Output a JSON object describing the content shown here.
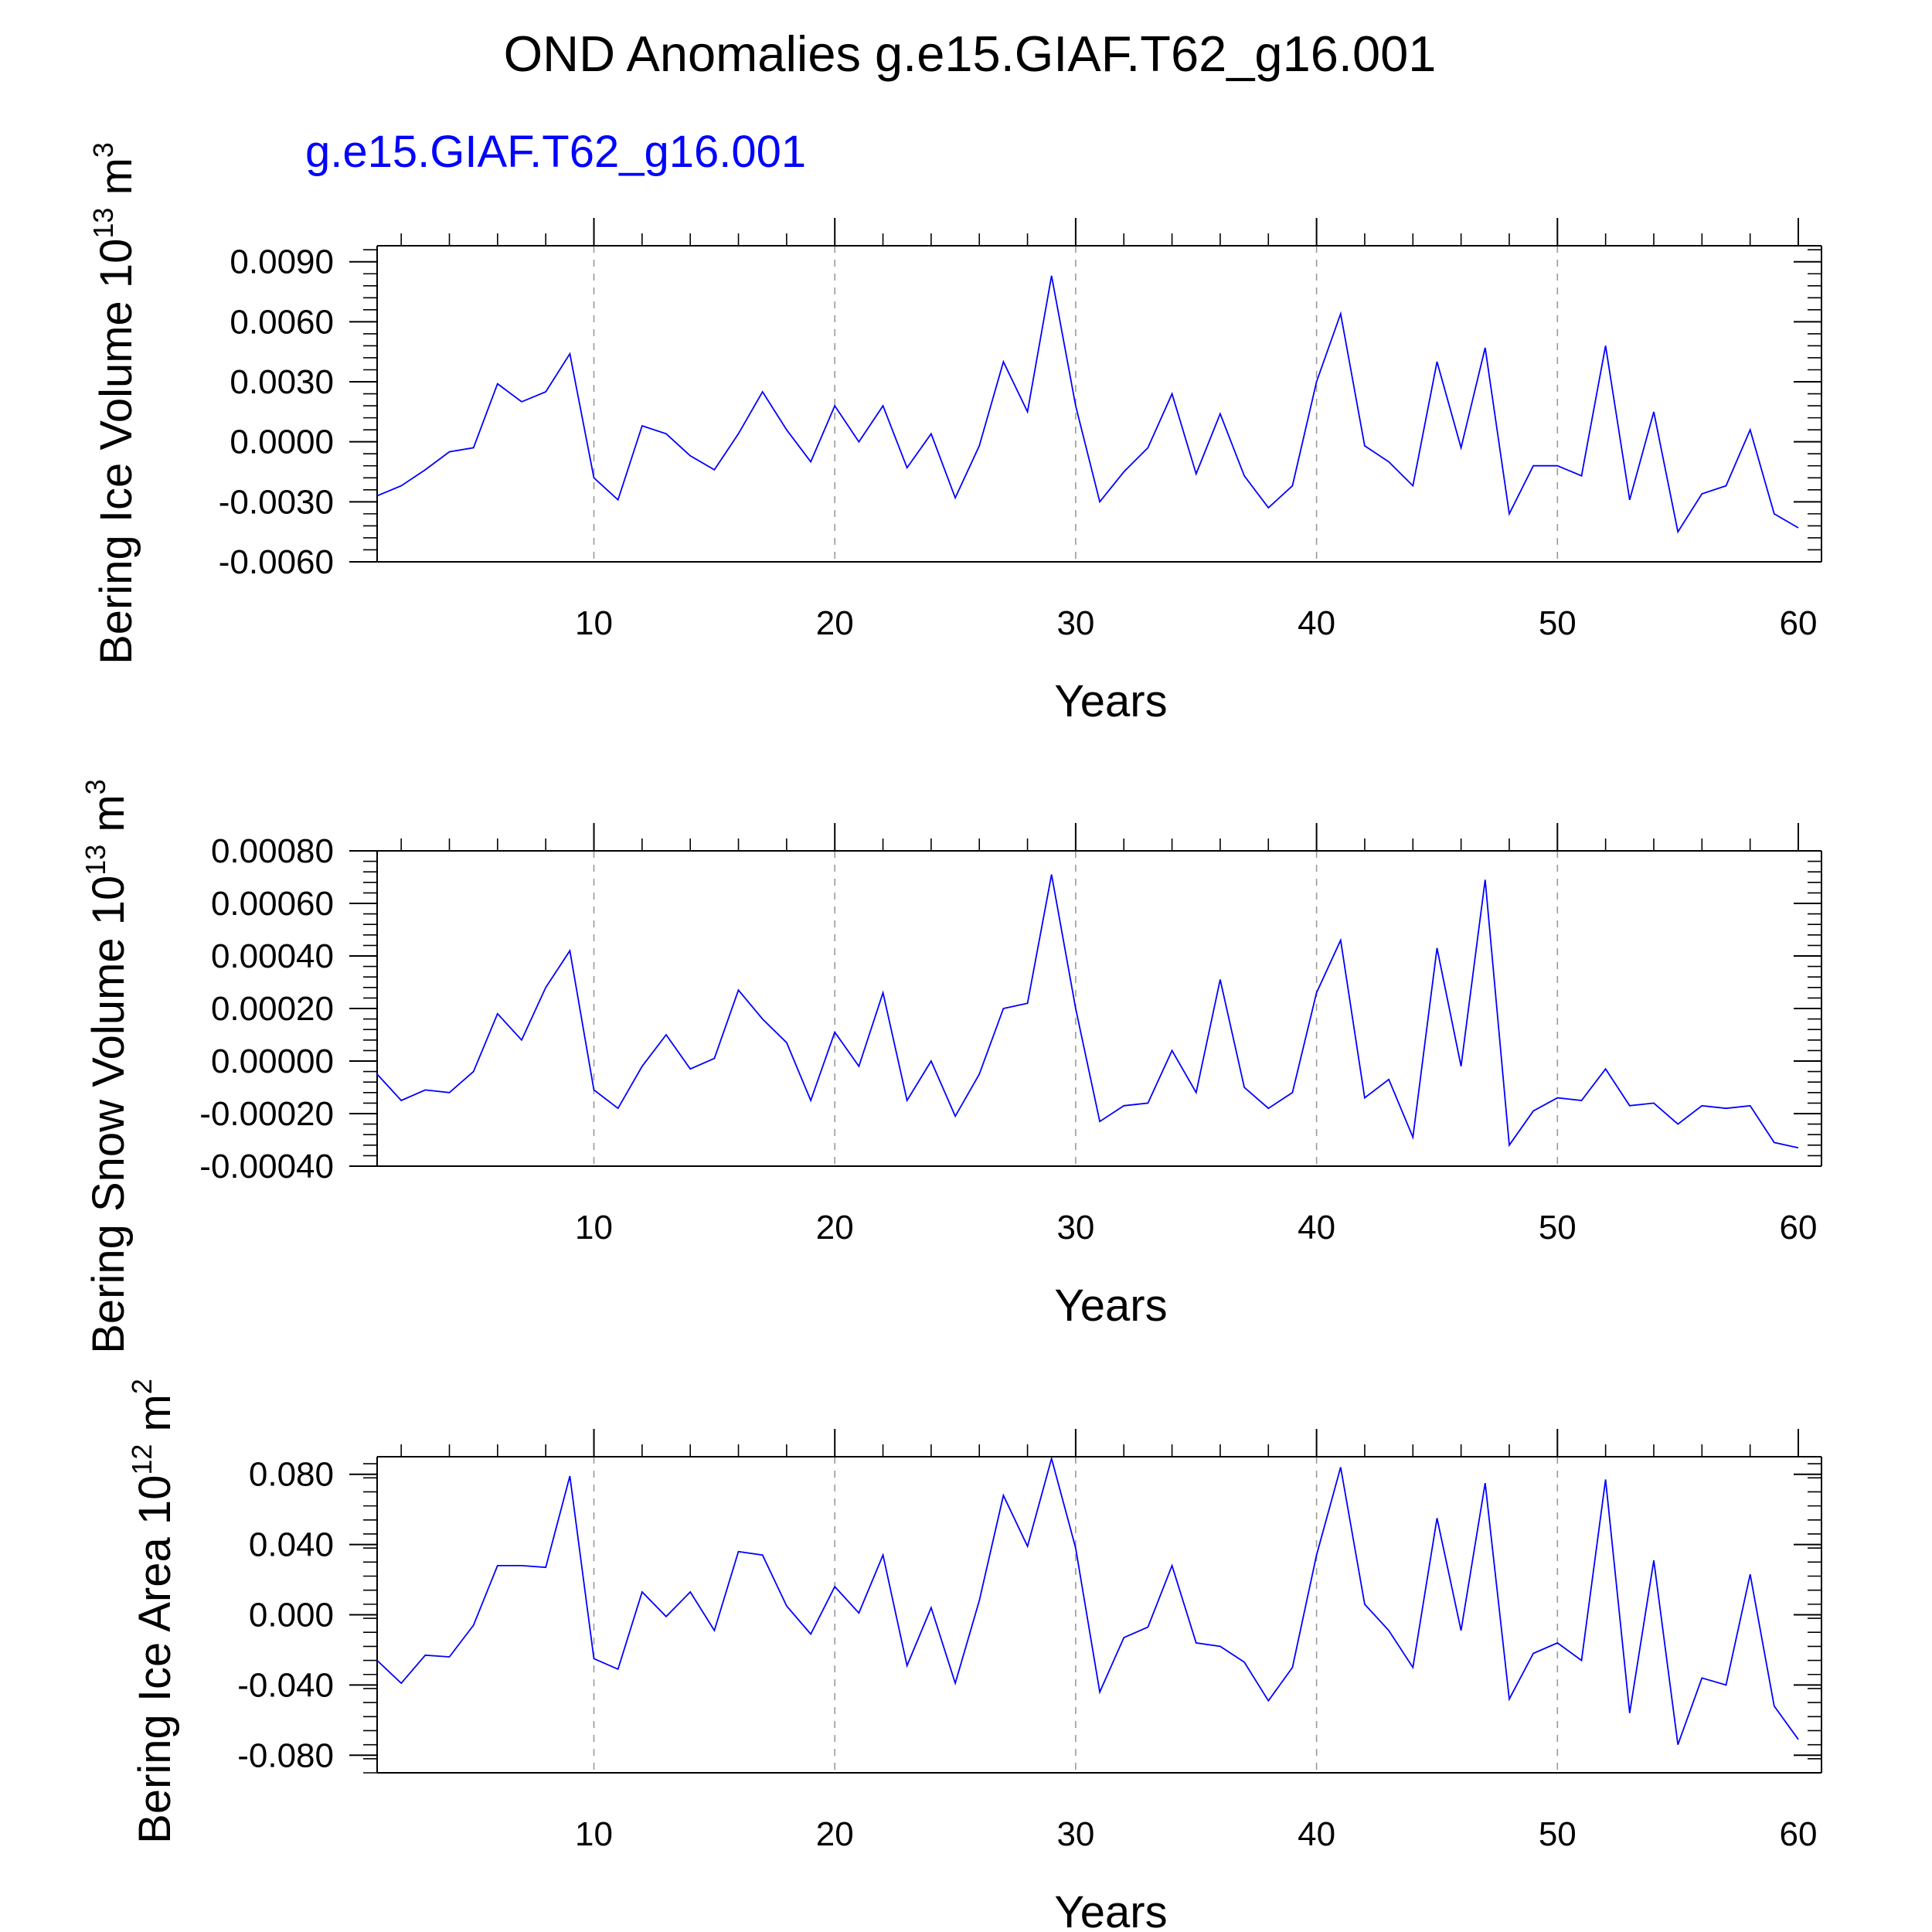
{
  "title": "OND Anomalies g.e15.GIAF.T62_g16.001",
  "case_label": "g.e15.GIAF.T62_g16.001",
  "colors": {
    "line": "#0000ff",
    "case_label": "#0000ff",
    "axis": "#000000",
    "grid": "#999999"
  },
  "chart_data": [
    {
      "type": "line",
      "series_name": "g.e15.GIAF.T62_g16.001",
      "ylabel_main": "Bering Ice Volume 10",
      "ylabel_exp": "13",
      "ylabel_unit": " m",
      "ylabel_unit_exp": "3",
      "xlabel": "Years",
      "xlim": [
        1,
        60
      ],
      "ylim": [
        -0.006,
        0.0098
      ],
      "yticks": [
        -0.006,
        -0.003,
        0.0,
        0.003,
        0.006,
        0.009
      ],
      "ytick_labels": [
        "-0.0060",
        "-0.0030",
        "0.0000",
        "0.0030",
        "0.0060",
        "0.0090"
      ],
      "xticks": [
        10,
        20,
        30,
        40,
        50,
        60
      ],
      "xtick_labels": [
        "10",
        "20",
        "30",
        "40",
        "50",
        "60"
      ],
      "grid": "vertical dashed",
      "x": [
        1,
        2,
        3,
        4,
        5,
        6,
        7,
        8,
        9,
        10,
        11,
        12,
        13,
        14,
        15,
        16,
        17,
        18,
        19,
        20,
        21,
        22,
        23,
        24,
        25,
        26,
        27,
        28,
        29,
        30,
        31,
        32,
        33,
        34,
        35,
        36,
        37,
        38,
        39,
        40,
        41,
        42,
        43,
        44,
        45,
        46,
        47,
        48,
        49,
        50,
        51,
        52,
        53,
        54,
        55,
        56,
        57,
        58,
        59,
        60
      ],
      "values": [
        -0.0027,
        -0.0022,
        -0.0014,
        -0.0005,
        -0.0003,
        0.0029,
        0.002,
        0.0025,
        0.0044,
        -0.0018,
        -0.0029,
        0.0008,
        0.0004,
        -0.0007,
        -0.0014,
        0.0004,
        0.0025,
        0.0006,
        -0.001,
        0.0018,
        0.0,
        0.0018,
        -0.0013,
        0.0004,
        -0.0028,
        -0.0002,
        0.004,
        0.0015,
        0.0083,
        0.0018,
        -0.003,
        -0.0015,
        -0.0003,
        0.0024,
        -0.0016,
        0.0014,
        -0.0017,
        -0.0033,
        -0.0022,
        0.003,
        0.0064,
        -0.0002,
        -0.001,
        -0.0022,
        0.004,
        -0.0003,
        0.0047,
        -0.0036,
        -0.0012,
        -0.0012,
        -0.0017,
        0.0048,
        -0.0029,
        0.0015,
        -0.0045,
        -0.0026,
        -0.0022,
        0.0006,
        -0.0036,
        -0.0043
      ]
    },
    {
      "type": "line",
      "series_name": "g.e15.GIAF.T62_g16.001",
      "ylabel_main": "Bering Snow Volume 10",
      "ylabel_exp": "13",
      "ylabel_unit": " m",
      "ylabel_unit_exp": "3",
      "xlabel": "Years",
      "xlim": [
        1,
        60
      ],
      "ylim": [
        -0.0004,
        0.0008
      ],
      "yticks": [
        -0.0004,
        -0.0002,
        0.0,
        0.0002,
        0.0004,
        0.0006,
        0.0008
      ],
      "ytick_labels": [
        "-0.00040",
        "-0.00020",
        "0.00000",
        "0.00020",
        "0.00040",
        "0.00060",
        "0.00080"
      ],
      "xticks": [
        10,
        20,
        30,
        40,
        50,
        60
      ],
      "xtick_labels": [
        "10",
        "20",
        "30",
        "40",
        "50",
        "60"
      ],
      "grid": "vertical dashed",
      "x": [
        1,
        2,
        3,
        4,
        5,
        6,
        7,
        8,
        9,
        10,
        11,
        12,
        13,
        14,
        15,
        16,
        17,
        18,
        19,
        20,
        21,
        22,
        23,
        24,
        25,
        26,
        27,
        28,
        29,
        30,
        31,
        32,
        33,
        34,
        35,
        36,
        37,
        38,
        39,
        40,
        41,
        42,
        43,
        44,
        45,
        46,
        47,
        48,
        49,
        50,
        51,
        52,
        53,
        54,
        55,
        56,
        57,
        58,
        59,
        60
      ],
      "values": [
        -5e-05,
        -0.00015,
        -0.00011,
        -0.00012,
        -4e-05,
        0.00018,
        8e-05,
        0.00028,
        0.00042,
        -0.00011,
        -0.00018,
        -2e-05,
        0.0001,
        -3e-05,
        1e-05,
        0.00027,
        0.00016,
        7e-05,
        -0.00015,
        0.00011,
        -2e-05,
        0.00026,
        -0.00015,
        0.0,
        -0.00021,
        -5e-05,
        0.0002,
        0.00022,
        0.00071,
        0.0002,
        -0.00023,
        -0.00017,
        -0.00016,
        4e-05,
        -0.00012,
        0.00031,
        -0.0001,
        -0.00018,
        -0.00012,
        0.00026,
        0.00046,
        -0.00014,
        -7e-05,
        -0.00029,
        0.00043,
        -2e-05,
        0.00069,
        -0.00032,
        -0.00019,
        -0.00014,
        -0.00015,
        -3e-05,
        -0.00017,
        -0.00016,
        -0.00024,
        -0.00017,
        -0.00018,
        -0.00017,
        -0.00031,
        -0.00033
      ]
    },
    {
      "type": "line",
      "series_name": "g.e15.GIAF.T62_g16.001",
      "ylabel_main": "Bering Ice Area 10",
      "ylabel_exp": "12",
      "ylabel_unit": " m",
      "ylabel_unit_exp": "2",
      "xlabel": "Years",
      "xlim": [
        1,
        60
      ],
      "ylim": [
        -0.09,
        0.09
      ],
      "yticks": [
        -0.08,
        -0.04,
        0.0,
        0.04,
        0.08
      ],
      "ytick_labels": [
        "-0.080",
        "-0.040",
        "0.000",
        "0.040",
        "0.080"
      ],
      "xticks": [
        10,
        20,
        30,
        40,
        50,
        60
      ],
      "xtick_labels": [
        "10",
        "20",
        "30",
        "40",
        "50",
        "60"
      ],
      "grid": "vertical dashed",
      "x": [
        1,
        2,
        3,
        4,
        5,
        6,
        7,
        8,
        9,
        10,
        11,
        12,
        13,
        14,
        15,
        16,
        17,
        18,
        19,
        20,
        21,
        22,
        23,
        24,
        25,
        26,
        27,
        28,
        29,
        30,
        31,
        32,
        33,
        34,
        35,
        36,
        37,
        38,
        39,
        40,
        41,
        42,
        43,
        44,
        45,
        46,
        47,
        48,
        49,
        50,
        51,
        52,
        53,
        54,
        55,
        56,
        57,
        58,
        59,
        60
      ],
      "values": [
        -0.026,
        -0.039,
        -0.023,
        -0.024,
        -0.006,
        0.028,
        0.028,
        0.027,
        0.079,
        -0.025,
        -0.031,
        0.013,
        -0.001,
        0.013,
        -0.009,
        0.036,
        0.034,
        0.005,
        -0.011,
        0.016,
        0.001,
        0.034,
        -0.029,
        0.004,
        -0.039,
        0.008,
        0.068,
        0.039,
        0.089,
        0.038,
        -0.044,
        -0.013,
        -0.007,
        0.028,
        -0.016,
        -0.018,
        -0.027,
        -0.049,
        -0.03,
        0.034,
        0.084,
        0.006,
        -0.009,
        -0.03,
        0.055,
        -0.009,
        0.075,
        -0.048,
        -0.022,
        -0.016,
        -0.026,
        0.077,
        -0.056,
        0.031,
        -0.074,
        -0.036,
        -0.04,
        0.023,
        -0.052,
        -0.071
      ]
    }
  ]
}
